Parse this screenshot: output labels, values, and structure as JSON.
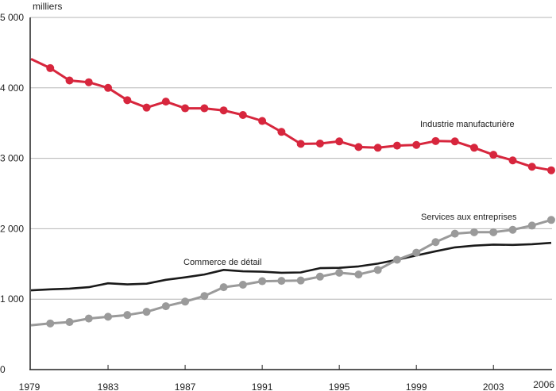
{
  "chart_data": {
    "type": "line",
    "title": "",
    "xlabel": "",
    "ylabel": "milliers",
    "ylim": [
      0,
      5000
    ],
    "xlim": [
      1979,
      2006
    ],
    "grid": true,
    "x": [
      1979,
      1980,
      1981,
      1982,
      1983,
      1984,
      1985,
      1986,
      1987,
      1988,
      1989,
      1990,
      1991,
      1992,
      1993,
      1994,
      1995,
      1996,
      1997,
      1998,
      1999,
      2000,
      2001,
      2002,
      2003,
      2004,
      2005,
      2006
    ],
    "x_tick_values": [
      1979,
      1983,
      1987,
      1991,
      1995,
      1999,
      2003,
      2006
    ],
    "x_tick_labels": [
      "1979",
      "1983",
      "1987",
      "1991",
      "1995",
      "1999",
      "2003",
      "2006"
    ],
    "y_tick_values": [
      0,
      1000,
      2000,
      3000,
      4000,
      5000
    ],
    "y_tick_labels": [
      "0",
      "1 000",
      "2 000",
      "3 000",
      "4 000",
      "5 000"
    ],
    "series": [
      {
        "name": "Industrie manufacturière",
        "color": "#d7263d",
        "markers": true,
        "values": [
          4410,
          4280,
          4105,
          4080,
          4000,
          3825,
          3720,
          3805,
          3710,
          3710,
          3680,
          3615,
          3530,
          3375,
          3205,
          3210,
          3240,
          3160,
          3150,
          3180,
          3190,
          3245,
          3240,
          3150,
          3050,
          2970,
          2880,
          2830
        ]
      },
      {
        "name": "Commerce de détail",
        "color": "#1a1a1a",
        "markers": false,
        "values": [
          1125,
          1140,
          1150,
          1170,
          1225,
          1210,
          1220,
          1275,
          1310,
          1350,
          1415,
          1395,
          1390,
          1375,
          1380,
          1440,
          1445,
          1465,
          1505,
          1560,
          1620,
          1680,
          1735,
          1760,
          1775,
          1770,
          1780,
          1800
        ]
      },
      {
        "name": "Services aux entreprises",
        "color": "#9a9a9a",
        "markers": true,
        "values": [
          630,
          655,
          675,
          725,
          750,
          775,
          820,
          900,
          965,
          1045,
          1170,
          1205,
          1255,
          1260,
          1265,
          1320,
          1375,
          1350,
          1415,
          1560,
          1660,
          1810,
          1930,
          1950,
          1950,
          1985,
          2045,
          2125
        ]
      }
    ]
  }
}
